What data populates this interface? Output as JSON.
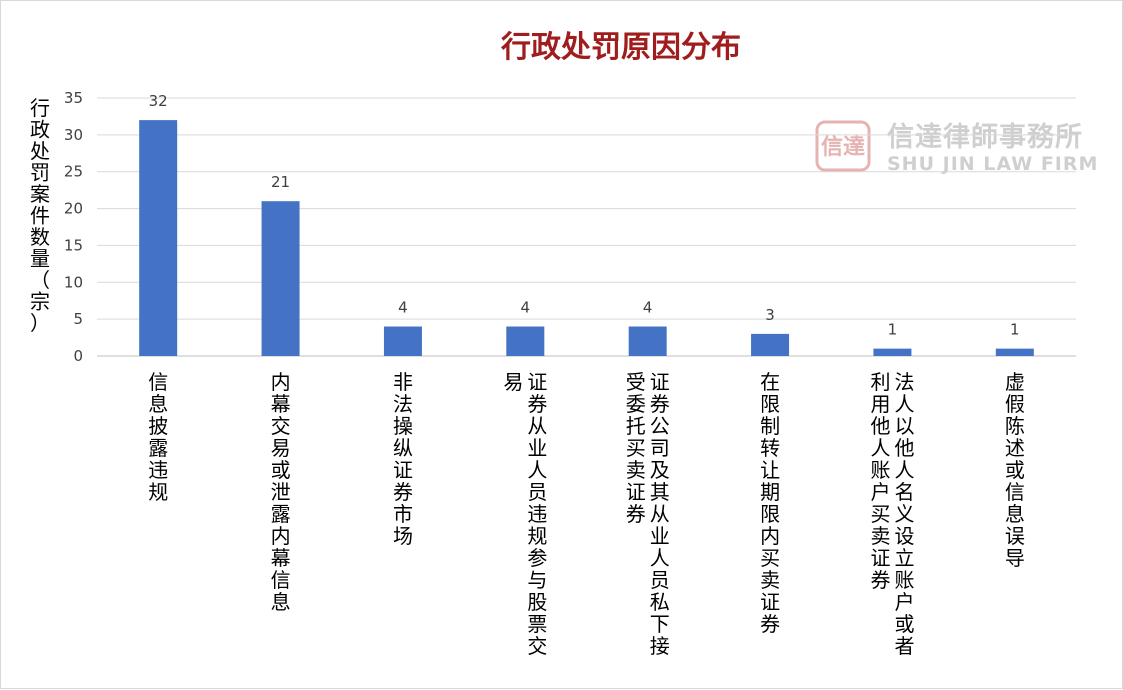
{
  "chart_data": {
    "type": "bar",
    "title": "行政处罚原因分布",
    "ylabel": "行政处罚案件数量（宗）",
    "xlabel": "",
    "ylim": [
      0,
      35
    ],
    "yticks": [
      0,
      5,
      10,
      15,
      20,
      25,
      30,
      35
    ],
    "grid": true,
    "legend": "none",
    "bar_color": "#4472c4",
    "categories": [
      "信息披露违规",
      "内幕交易或泄露内幕信息",
      "非法操纵证券市场",
      "证券从业人员违规参与股票交易",
      "证券公司及其从业人员私下接受委托买卖证券",
      "在限制转让期限内买卖证券",
      "法人以他人名义设立账户或者利用他人账户买卖证券",
      "虚假陈述或信息误导"
    ],
    "values": [
      32,
      21,
      4,
      4,
      4,
      3,
      1,
      1
    ]
  },
  "watermark": {
    "name_cn": "信達律師事務所",
    "name_en": "SHU JIN LAW FIRM",
    "seal_text": "信達",
    "color": "#cfcfcf",
    "seal_color": "#e6b3b3"
  }
}
